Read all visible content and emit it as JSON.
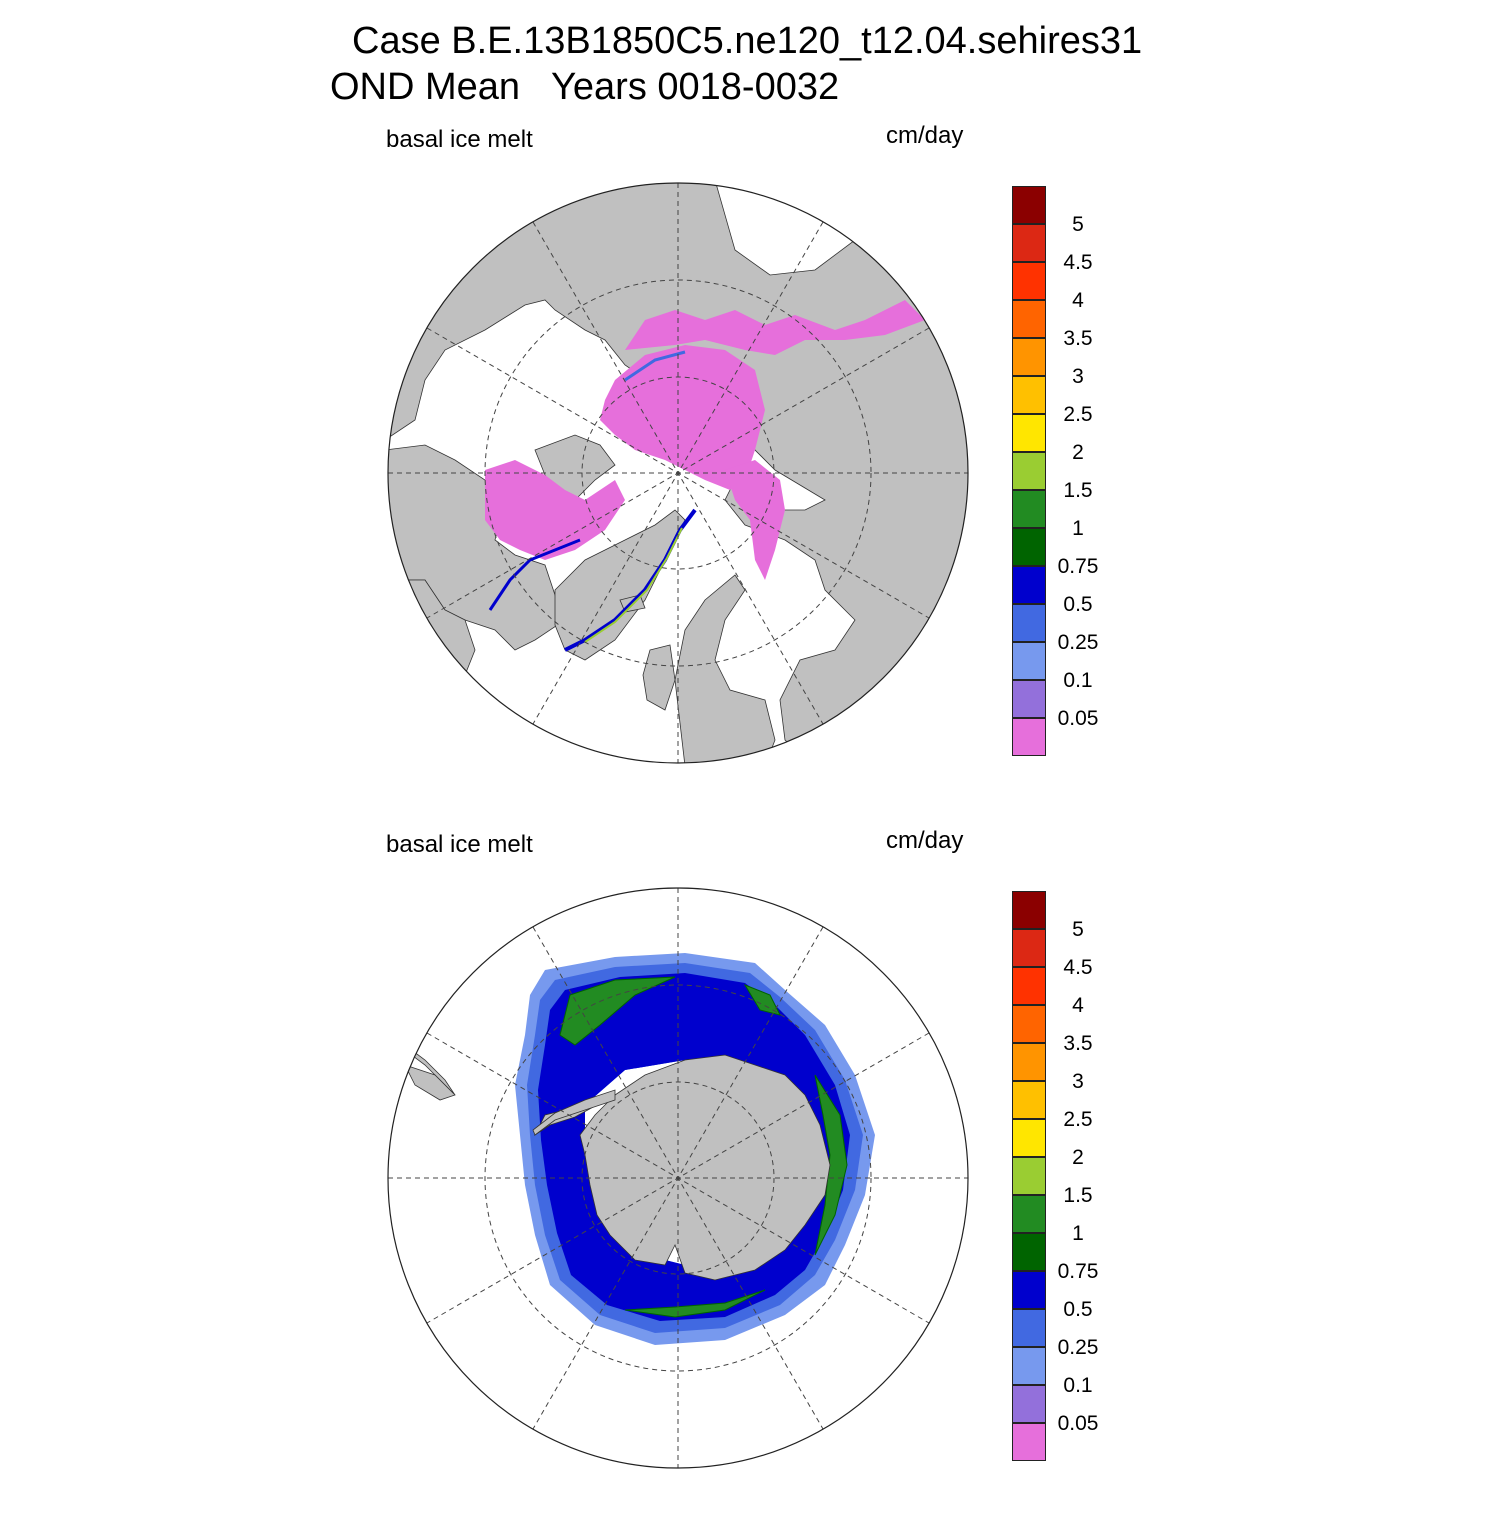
{
  "title": {
    "line1": "Case B.E.13B1850C5.ne120_t12.04.sehires31",
    "line2": "OND Mean   Years 0018-0032"
  },
  "panels": [
    {
      "id": "north",
      "variable_label": "basal ice melt",
      "units_label": "cm/day",
      "hemisphere": "north"
    },
    {
      "id": "south",
      "variable_label": "basal ice melt",
      "units_label": "cm/day",
      "hemisphere": "south"
    }
  ],
  "colorbar": {
    "levels": [
      "0.05",
      "0.1",
      "0.25",
      "0.5",
      "0.75",
      "1",
      "1.5",
      "2",
      "2.5",
      "3",
      "3.5",
      "4",
      "4.5",
      "5"
    ],
    "colors": [
      "#e66fdb",
      "#9370db",
      "#7799ee",
      "#4169e1",
      "#0000cd",
      "#006400",
      "#228b22",
      "#9acd32",
      "#ffe600",
      "#ffc000",
      "#ff9400",
      "#ff6400",
      "#ff3200",
      "#dc2814",
      "#8b0000"
    ]
  },
  "map_colors": {
    "land": "#c0c0c0",
    "ocean": "#ffffff",
    "grid": "#444444"
  }
}
